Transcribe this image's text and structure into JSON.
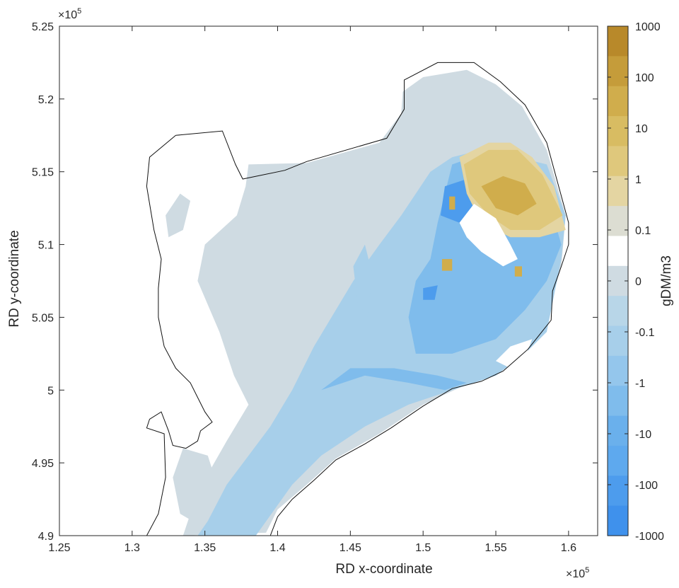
{
  "chart_data": {
    "type": "heatmap",
    "title": "",
    "xlabel": "RD x-coordinate",
    "ylabel": "RD y-coordinate",
    "x_exponent_label": "×10^5",
    "y_exponent_label": "×10^5",
    "xlim": [
      1.25,
      1.62
    ],
    "ylim": [
      4.9,
      5.25
    ],
    "x_ticks": [
      "1.25",
      "1.3",
      "1.35",
      "1.4",
      "1.45",
      "1.5",
      "1.55",
      "1.6"
    ],
    "x_tick_values": [
      1.25,
      1.3,
      1.35,
      1.4,
      1.45,
      1.5,
      1.55,
      1.6
    ],
    "y_ticks": [
      "4.9",
      "4.95",
      "5",
      "5.05",
      "5.1",
      "5.15",
      "5.2",
      "5.25"
    ],
    "y_tick_values": [
      4.9,
      4.95,
      5.0,
      5.05,
      5.1,
      5.15,
      5.2,
      5.25
    ],
    "colorbar": {
      "label": "gDM/m3",
      "tick_labels": [
        "1000",
        "100",
        "10",
        "1",
        "0.1",
        "0",
        "-0.1",
        "-1",
        "-10",
        "-100",
        "-1000"
      ],
      "colors_top_to_bottom": [
        "#b8892a",
        "#c59c3a",
        "#d0ad4c",
        "#d8bc62",
        "#dfc87c",
        "#e4d5a2",
        "#dcddd2",
        "#ffffff",
        "#cfdbe2",
        "#b8d6e8",
        "#a7cfea",
        "#94c6ec",
        "#7fbcec",
        "#6ab0ec",
        "#5ea9ee",
        "#4d9ced",
        "#3f91ec"
      ]
    },
    "outline": [
      [
        1.33,
        5.175
      ],
      [
        1.362,
        5.178
      ],
      [
        1.371,
        5.155
      ],
      [
        1.376,
        5.145
      ],
      [
        1.405,
        5.151
      ],
      [
        1.42,
        5.157
      ],
      [
        1.475,
        5.173
      ],
      [
        1.487,
        5.193
      ],
      [
        1.487,
        5.213
      ],
      [
        1.51,
        5.225
      ],
      [
        1.535,
        5.225
      ],
      [
        1.553,
        5.212
      ],
      [
        1.57,
        5.196
      ],
      [
        1.585,
        5.17
      ],
      [
        1.6,
        5.115
      ],
      [
        1.6,
        5.1
      ],
      [
        1.595,
        5.085
      ],
      [
        1.589,
        5.068
      ],
      [
        1.588,
        5.048
      ],
      [
        1.572,
        5.028
      ],
      [
        1.555,
        5.013
      ],
      [
        1.54,
        5.006
      ],
      [
        1.52,
        5.001
      ],
      [
        1.5,
        4.989
      ],
      [
        1.478,
        4.974
      ],
      [
        1.46,
        4.963
      ],
      [
        1.44,
        4.952
      ],
      [
        1.425,
        4.938
      ],
      [
        1.41,
        4.925
      ],
      [
        1.4,
        4.913
      ],
      [
        1.395,
        4.9
      ],
      [
        1.31,
        4.9
      ],
      [
        1.318,
        4.915
      ],
      [
        1.323,
        4.94
      ],
      [
        1.322,
        4.97
      ],
      [
        1.31,
        4.974
      ],
      [
        1.312,
        4.98
      ],
      [
        1.32,
        4.985
      ],
      [
        1.325,
        4.972
      ],
      [
        1.328,
        4.962
      ],
      [
        1.337,
        4.96
      ],
      [
        1.345,
        4.965
      ],
      [
        1.347,
        4.972
      ],
      [
        1.355,
        4.978
      ],
      [
        1.35,
        4.985
      ],
      [
        1.345,
        4.995
      ],
      [
        1.34,
        5.005
      ],
      [
        1.33,
        5.015
      ],
      [
        1.322,
        5.03
      ],
      [
        1.318,
        5.05
      ],
      [
        1.318,
        5.07
      ],
      [
        1.32,
        5.09
      ],
      [
        1.315,
        5.11
      ],
      [
        1.31,
        5.14
      ],
      [
        1.312,
        5.16
      ],
      [
        1.33,
        5.175
      ]
    ],
    "regions": [
      {
        "class": "-0.1",
        "points": [
          [
            1.38,
            5.155
          ],
          [
            1.42,
            5.156
          ],
          [
            1.47,
            5.17
          ],
          [
            1.485,
            5.19
          ],
          [
            1.486,
            5.205
          ],
          [
            1.5,
            5.215
          ],
          [
            1.53,
            5.22
          ],
          [
            1.55,
            5.21
          ],
          [
            1.568,
            5.195
          ],
          [
            1.585,
            5.165
          ],
          [
            1.598,
            5.12
          ],
          [
            1.595,
            5.085
          ],
          [
            1.585,
            5.05
          ],
          [
            1.56,
            5.02
          ],
          [
            1.53,
            5.004
          ],
          [
            1.5,
            4.99
          ],
          [
            1.47,
            4.97
          ],
          [
            1.44,
            4.953
          ],
          [
            1.42,
            4.935
          ],
          [
            1.4,
            4.918
          ],
          [
            1.392,
            4.902
          ],
          [
            1.335,
            4.9
          ],
          [
            1.345,
            4.93
          ],
          [
            1.365,
            4.965
          ],
          [
            1.38,
            4.99
          ],
          [
            1.37,
            5.01
          ],
          [
            1.36,
            5.04
          ],
          [
            1.345,
            5.075
          ],
          [
            1.35,
            5.1
          ],
          [
            1.372,
            5.12
          ],
          [
            1.378,
            5.14
          ]
        ]
      },
      {
        "class": "-0.1",
        "points": [
          [
            1.35,
            4.905
          ],
          [
            1.36,
            4.93
          ],
          [
            1.352,
            4.955
          ],
          [
            1.335,
            4.96
          ],
          [
            1.328,
            4.94
          ],
          [
            1.333,
            4.915
          ]
        ]
      },
      {
        "class": "-0.1",
        "points": [
          [
            1.333,
            5.135
          ],
          [
            1.34,
            5.13
          ],
          [
            1.335,
            5.11
          ],
          [
            1.325,
            5.105
          ],
          [
            1.323,
            5.12
          ]
        ]
      },
      {
        "class": "-0.1",
        "points": [
          [
            1.49,
            5.2
          ],
          [
            1.5,
            5.205
          ],
          [
            1.51,
            5.21
          ],
          [
            1.505,
            5.2
          ],
          [
            1.495,
            5.19
          ]
        ]
      },
      {
        "class": "-1",
        "points": [
          [
            1.385,
            4.9
          ],
          [
            1.41,
            4.935
          ],
          [
            1.43,
            4.955
          ],
          [
            1.46,
            4.975
          ],
          [
            1.49,
            4.99
          ],
          [
            1.52,
            5.0
          ],
          [
            1.55,
            5.01
          ],
          [
            1.57,
            5.025
          ],
          [
            1.585,
            5.04
          ],
          [
            1.59,
            5.065
          ],
          [
            1.595,
            5.09
          ],
          [
            1.598,
            5.12
          ],
          [
            1.585,
            5.155
          ],
          [
            1.565,
            5.16
          ],
          [
            1.54,
            5.165
          ],
          [
            1.52,
            5.16
          ],
          [
            1.505,
            5.15
          ],
          [
            1.495,
            5.135
          ],
          [
            1.485,
            5.12
          ],
          [
            1.47,
            5.1
          ],
          [
            1.452,
            5.075
          ],
          [
            1.44,
            5.055
          ],
          [
            1.425,
            5.03
          ],
          [
            1.41,
            5.0
          ],
          [
            1.395,
            4.975
          ],
          [
            1.38,
            4.955
          ],
          [
            1.365,
            4.935
          ],
          [
            1.352,
            4.91
          ],
          [
            1.345,
            4.9
          ]
        ]
      },
      {
        "class": "-1",
        "points": [
          [
            1.46,
            5.1
          ],
          [
            1.465,
            5.08
          ],
          [
            1.462,
            5.05
          ],
          [
            1.455,
            5.06
          ],
          [
            1.452,
            5.085
          ]
        ]
      },
      {
        "class": "-10",
        "points": [
          [
            1.52,
            5.155
          ],
          [
            1.54,
            5.162
          ],
          [
            1.565,
            5.155
          ],
          [
            1.585,
            5.135
          ],
          [
            1.595,
            5.1
          ],
          [
            1.585,
            5.075
          ],
          [
            1.57,
            5.055
          ],
          [
            1.55,
            5.035
          ],
          [
            1.52,
            5.025
          ],
          [
            1.495,
            5.025
          ],
          [
            1.49,
            5.05
          ],
          [
            1.495,
            5.075
          ],
          [
            1.505,
            5.09
          ],
          [
            1.51,
            5.115
          ]
        ]
      },
      {
        "class": "-10",
        "points": [
          [
            1.43,
            5.0
          ],
          [
            1.46,
            5.01
          ],
          [
            1.49,
            5.005
          ],
          [
            1.515,
            5.0
          ],
          [
            1.53,
            5.005
          ],
          [
            1.51,
            5.01
          ],
          [
            1.48,
            5.015
          ],
          [
            1.45,
            5.015
          ]
        ]
      },
      {
        "class": "-100",
        "points": [
          [
            1.515,
            5.14
          ],
          [
            1.53,
            5.145
          ],
          [
            1.54,
            5.13
          ],
          [
            1.525,
            5.115
          ],
          [
            1.512,
            5.12
          ]
        ]
      },
      {
        "class": "-100",
        "points": [
          [
            1.5,
            5.07
          ],
          [
            1.51,
            5.072
          ],
          [
            1.508,
            5.062
          ],
          [
            1.5,
            5.062
          ]
        ]
      },
      {
        "class": "0.1",
        "points": [
          [
            1.525,
            5.16
          ],
          [
            1.545,
            5.17
          ],
          [
            1.56,
            5.17
          ],
          [
            1.575,
            5.16
          ],
          [
            1.59,
            5.14
          ],
          [
            1.598,
            5.11
          ],
          [
            1.58,
            5.105
          ],
          [
            1.56,
            5.105
          ],
          [
            1.54,
            5.115
          ],
          [
            1.53,
            5.135
          ]
        ]
      },
      {
        "class": "1",
        "points": [
          [
            1.528,
            5.155
          ],
          [
            1.545,
            5.165
          ],
          [
            1.565,
            5.165
          ],
          [
            1.582,
            5.148
          ],
          [
            1.596,
            5.12
          ],
          [
            1.58,
            5.11
          ],
          [
            1.56,
            5.11
          ],
          [
            1.545,
            5.12
          ],
          [
            1.532,
            5.135
          ]
        ]
      },
      {
        "class": "10",
        "points": [
          [
            1.54,
            5.14
          ],
          [
            1.555,
            5.147
          ],
          [
            1.57,
            5.142
          ],
          [
            1.578,
            5.128
          ],
          [
            1.565,
            5.12
          ],
          [
            1.55,
            5.125
          ]
        ]
      },
      {
        "class": "10",
        "points": [
          [
            1.518,
            5.133
          ],
          [
            1.522,
            5.133
          ],
          [
            1.522,
            5.124
          ],
          [
            1.518,
            5.124
          ]
        ]
      },
      {
        "class": "10",
        "points": [
          [
            1.513,
            5.09
          ],
          [
            1.52,
            5.09
          ],
          [
            1.52,
            5.082
          ],
          [
            1.513,
            5.082
          ]
        ]
      },
      {
        "class": "10",
        "points": [
          [
            1.563,
            5.085
          ],
          [
            1.568,
            5.085
          ],
          [
            1.568,
            5.078
          ],
          [
            1.563,
            5.078
          ]
        ]
      },
      {
        "class": "0",
        "points": [
          [
            1.525,
            5.115
          ],
          [
            1.535,
            5.128
          ],
          [
            1.55,
            5.118
          ],
          [
            1.56,
            5.1
          ],
          [
            1.565,
            5.09
          ],
          [
            1.555,
            5.085
          ],
          [
            1.54,
            5.095
          ],
          [
            1.53,
            5.105
          ]
        ]
      },
      {
        "class": "0",
        "points": [
          [
            1.55,
            5.02
          ],
          [
            1.56,
            5.03
          ],
          [
            1.575,
            5.035
          ],
          [
            1.57,
            5.022
          ],
          [
            1.56,
            5.015
          ]
        ]
      }
    ]
  }
}
